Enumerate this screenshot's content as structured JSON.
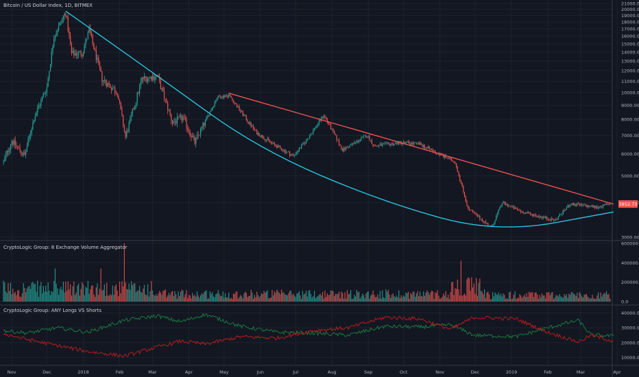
{
  "chart_data": [
    {
      "type": "candlestick",
      "title": "Bitcoin / US Dollar Index, 1D, BITMEX",
      "y_ticks": [
        "21000.00",
        "20000.00",
        "19000.00",
        "18000.00",
        "17000.00",
        "16000.00",
        "15000.00",
        "14000.00",
        "13000.00",
        "12000.00",
        "11000.00",
        "10000.00",
        "9000.00",
        "8000.00",
        "7000.00",
        "6000.00",
        "5000.00",
        "4000.00",
        "3000.00"
      ],
      "ylim": [
        3000,
        21000
      ],
      "y_scale": "log",
      "last_price_label": "3952.73",
      "last_price_color": "#ef5350",
      "up_color": "#26a69a",
      "down_color": "#ef5350",
      "price_anchors": [
        {
          "x": "2017-10-25",
          "y": 5600
        },
        {
          "x": "2017-11-01",
          "y": 6700
        },
        {
          "x": "2017-11-12",
          "y": 5900
        },
        {
          "x": "2017-11-20",
          "y": 8100
        },
        {
          "x": "2017-12-01",
          "y": 10500
        },
        {
          "x": "2017-12-07",
          "y": 16000
        },
        {
          "x": "2017-12-17",
          "y": 19500
        },
        {
          "x": "2017-12-22",
          "y": 13800
        },
        {
          "x": "2017-12-31",
          "y": 13900
        },
        {
          "x": "2018-01-06",
          "y": 16800
        },
        {
          "x": "2018-01-17",
          "y": 11200
        },
        {
          "x": "2018-01-30",
          "y": 10000
        },
        {
          "x": "2018-02-06",
          "y": 6900
        },
        {
          "x": "2018-02-20",
          "y": 11200
        },
        {
          "x": "2018-03-05",
          "y": 11500
        },
        {
          "x": "2018-03-18",
          "y": 7800
        },
        {
          "x": "2018-03-27",
          "y": 8100
        },
        {
          "x": "2018-04-06",
          "y": 6600
        },
        {
          "x": "2018-04-25",
          "y": 9600
        },
        {
          "x": "2018-05-05",
          "y": 9800
        },
        {
          "x": "2018-05-28",
          "y": 7200
        },
        {
          "x": "2018-06-12",
          "y": 6500
        },
        {
          "x": "2018-06-29",
          "y": 5900
        },
        {
          "x": "2018-07-10",
          "y": 6700
        },
        {
          "x": "2018-07-25",
          "y": 8300
        },
        {
          "x": "2018-08-10",
          "y": 6200
        },
        {
          "x": "2018-08-31",
          "y": 7000
        },
        {
          "x": "2018-09-06",
          "y": 6400
        },
        {
          "x": "2018-09-30",
          "y": 6600
        },
        {
          "x": "2018-10-15",
          "y": 6500
        },
        {
          "x": "2018-11-14",
          "y": 5600
        },
        {
          "x": "2018-11-25",
          "y": 3800
        },
        {
          "x": "2018-12-15",
          "y": 3250
        },
        {
          "x": "2018-12-24",
          "y": 4000
        },
        {
          "x": "2019-01-10",
          "y": 3700
        },
        {
          "x": "2019-02-07",
          "y": 3450
        },
        {
          "x": "2019-02-20",
          "y": 3950
        },
        {
          "x": "2019-03-15",
          "y": 3850
        },
        {
          "x": "2019-03-26",
          "y": 3953
        }
      ],
      "trendlines": [
        {
          "name": "",
          "color": "#ef5350",
          "points": [
            {
              "x": "2018-05-05",
              "y": 9950
            },
            {
              "x": "2019-03-29",
              "y": 3952
            }
          ]
        },
        {
          "name": "",
          "color": "#26c6da",
          "type": "curve",
          "points": [
            {
              "x": "2017-12-17",
              "y": 19700
            },
            {
              "x": "2018-03-05",
              "y": 11500
            },
            {
              "x": "2018-06-01",
              "y": 6200
            },
            {
              "x": "2018-09-15",
              "y": 4000
            },
            {
              "x": "2018-12-20",
              "y": 3100
            },
            {
              "x": "2019-03-29",
              "y": 3700
            }
          ]
        }
      ]
    },
    {
      "type": "bar",
      "title": "CryptoLogic Group: 8 Exchange Volume Aggregator",
      "y_ticks": [
        "600000.0",
        "400000.0",
        "200000.0",
        "0.0"
      ],
      "ylim": [
        0,
        600000
      ]
    },
    {
      "type": "line",
      "title": "CryptoLogic Group: ANY Longs VS Shorts",
      "y_ticks": [
        "40000.0",
        "30000.0",
        "20000.0",
        "10000.0"
      ],
      "ylim": [
        7000,
        43000
      ],
      "series": [
        {
          "name": "",
          "color": "#1b7a3e",
          "values": [
            {
              "x": "2017-10-25",
              "y": 28000
            },
            {
              "x": "2017-11-15",
              "y": 26500
            },
            {
              "x": "2017-12-10",
              "y": 30000
            },
            {
              "x": "2018-01-05",
              "y": 27000
            },
            {
              "x": "2018-02-05",
              "y": 35000
            },
            {
              "x": "2018-03-05",
              "y": 38000
            },
            {
              "x": "2018-03-25",
              "y": 34000
            },
            {
              "x": "2018-04-15",
              "y": 39000
            },
            {
              "x": "2018-05-15",
              "y": 31000
            },
            {
              "x": "2018-06-15",
              "y": 27000
            },
            {
              "x": "2018-07-15",
              "y": 26500
            },
            {
              "x": "2018-08-15",
              "y": 25000
            },
            {
              "x": "2018-09-15",
              "y": 31000
            },
            {
              "x": "2018-10-15",
              "y": 30500
            },
            {
              "x": "2018-11-10",
              "y": 32000
            },
            {
              "x": "2018-11-30",
              "y": 25000
            },
            {
              "x": "2019-01-05",
              "y": 24000
            },
            {
              "x": "2019-02-01",
              "y": 30000
            },
            {
              "x": "2019-02-27",
              "y": 35000
            },
            {
              "x": "2019-03-10",
              "y": 25000
            },
            {
              "x": "2019-03-29",
              "y": 24500
            }
          ]
        },
        {
          "name": "",
          "color": "#b71c1c",
          "values": [
            {
              "x": "2017-10-25",
              "y": 26000
            },
            {
              "x": "2017-11-15",
              "y": 22000
            },
            {
              "x": "2017-12-10",
              "y": 18000
            },
            {
              "x": "2018-01-05",
              "y": 14000
            },
            {
              "x": "2018-02-05",
              "y": 11000
            },
            {
              "x": "2018-03-05",
              "y": 17000
            },
            {
              "x": "2018-03-25",
              "y": 21000
            },
            {
              "x": "2018-04-15",
              "y": 19000
            },
            {
              "x": "2018-05-15",
              "y": 24000
            },
            {
              "x": "2018-06-15",
              "y": 23000
            },
            {
              "x": "2018-07-15",
              "y": 28000
            },
            {
              "x": "2018-08-15",
              "y": 30000
            },
            {
              "x": "2018-09-15",
              "y": 37000
            },
            {
              "x": "2018-10-15",
              "y": 36000
            },
            {
              "x": "2018-11-10",
              "y": 29000
            },
            {
              "x": "2018-11-30",
              "y": 37000
            },
            {
              "x": "2019-01-05",
              "y": 36000
            },
            {
              "x": "2019-02-01",
              "y": 27000
            },
            {
              "x": "2019-02-27",
              "y": 20500
            },
            {
              "x": "2019-03-10",
              "y": 25000
            },
            {
              "x": "2019-03-29",
              "y": 21000
            }
          ]
        }
      ]
    }
  ],
  "x_axis": {
    "ticks": [
      {
        "label": "Nov",
        "x": "2017-11-01"
      },
      {
        "label": "Dec",
        "x": "2017-12-01"
      },
      {
        "label": "2018",
        "x": "2018-01-01"
      },
      {
        "label": "Feb",
        "x": "2018-02-01"
      },
      {
        "label": "Mar",
        "x": "2018-03-01"
      },
      {
        "label": "Apr",
        "x": "2018-04-01"
      },
      {
        "label": "May",
        "x": "2018-05-01"
      },
      {
        "label": "Jun",
        "x": "2018-06-01"
      },
      {
        "label": "Jul",
        "x": "2018-07-01"
      },
      {
        "label": "Aug",
        "x": "2018-08-01"
      },
      {
        "label": "Sep",
        "x": "2018-09-01"
      },
      {
        "label": "Oct",
        "x": "2018-10-01"
      },
      {
        "label": "Nov",
        "x": "2018-11-01"
      },
      {
        "label": "Dec",
        "x": "2018-12-01"
      },
      {
        "label": "2019",
        "x": "2019-01-01"
      },
      {
        "label": "Feb",
        "x": "2019-02-01"
      },
      {
        "label": "Mar",
        "x": "2019-03-01"
      },
      {
        "label": "Apr",
        "x": "2019-04-01"
      }
    ],
    "xlim": [
      "2017-10-22",
      "2019-04-01"
    ]
  },
  "colors": {
    "background": "#131722",
    "grid": "#1e222d",
    "text": "#b2b5be",
    "separator": "#363a45"
  }
}
